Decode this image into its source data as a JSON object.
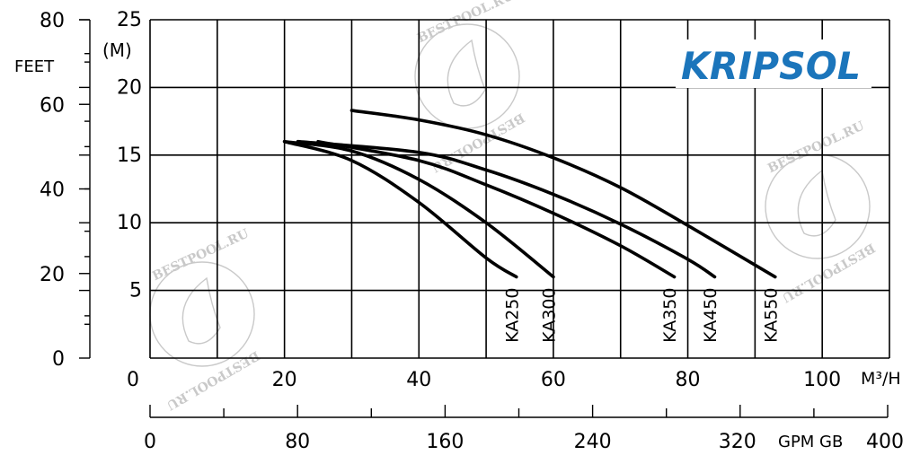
{
  "chart_data": {
    "type": "line",
    "title": "",
    "x_axis": {
      "unit": "M³/H",
      "ticks": [
        0,
        20,
        40,
        60,
        80,
        100
      ],
      "range": [
        0,
        110
      ]
    },
    "x2_axis": {
      "unit": "GPM GB",
      "ticks": [
        0,
        80,
        160,
        240,
        320,
        400
      ],
      "range": [
        0,
        400
      ]
    },
    "y_axis": {
      "unit": "(M)",
      "ticks": [
        5,
        10,
        15,
        20,
        25
      ],
      "range": [
        0,
        25
      ]
    },
    "y2_axis": {
      "unit": "FEET",
      "ticks": [
        0,
        20,
        40,
        60,
        80
      ],
      "range": [
        0,
        80
      ]
    },
    "grid": true,
    "series": [
      {
        "name": "KA250",
        "x": [
          20,
          30,
          40,
          50,
          54.5
        ],
        "y": [
          16,
          14.6,
          11.5,
          7.4,
          6
        ]
      },
      {
        "name": "KA300",
        "x": [
          20,
          30,
          40,
          50,
          60
        ],
        "y": [
          16,
          15.3,
          13.2,
          10,
          6
        ]
      },
      {
        "name": "KA350",
        "x": [
          25,
          40,
          50,
          60,
          70,
          78
        ],
        "y": [
          16,
          14.6,
          12.8,
          10.7,
          8.3,
          6
        ]
      },
      {
        "name": "KA450",
        "x": [
          22,
          40,
          50,
          60,
          70,
          80,
          84
        ],
        "y": [
          16,
          15.2,
          13.9,
          12.1,
          9.9,
          7.3,
          6
        ]
      },
      {
        "name": "KA550",
        "x": [
          30,
          40,
          50,
          60,
          70,
          80,
          93
        ],
        "y": [
          18.3,
          17.6,
          16.5,
          14.8,
          12.6,
          9.8,
          6
        ]
      }
    ]
  },
  "logo": {
    "text": "KRIPSOL",
    "color": "#1b75bb"
  },
  "watermark": {
    "text": "BESTPOOL.RU"
  }
}
